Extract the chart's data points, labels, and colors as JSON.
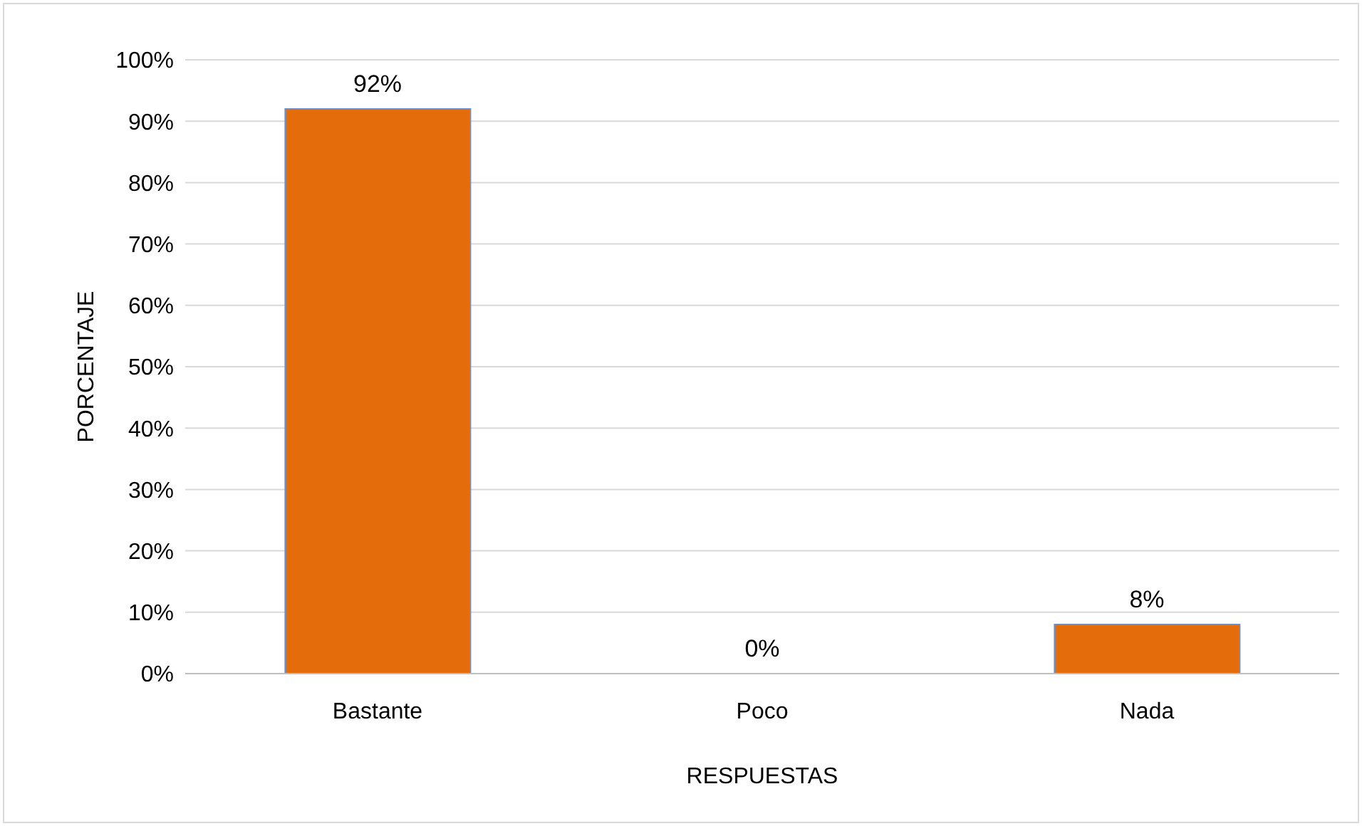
{
  "chart_data": {
    "type": "bar",
    "xlabel": "RESPUESTAS",
    "ylabel": "PORCENTAJE",
    "categories": [
      "Bastante",
      "Poco",
      "Nada"
    ],
    "values": [
      92,
      0,
      8
    ],
    "value_labels": [
      "92%",
      "0%",
      "8%"
    ],
    "color": "#e46c0a",
    "ylim": [
      0,
      100
    ],
    "yticks": [
      {
        "value": 0,
        "label": "0%"
      },
      {
        "value": 10,
        "label": "10%"
      },
      {
        "value": 20,
        "label": "20%"
      },
      {
        "value": 30,
        "label": "30%"
      },
      {
        "value": 40,
        "label": "40%"
      },
      {
        "value": 50,
        "label": "50%"
      },
      {
        "value": 60,
        "label": "60%"
      },
      {
        "value": 70,
        "label": "70%"
      },
      {
        "value": 80,
        "label": "80%"
      },
      {
        "value": 90,
        "label": "90%"
      },
      {
        "value": 100,
        "label": "100%"
      }
    ],
    "grid": "y",
    "legend": false
  }
}
